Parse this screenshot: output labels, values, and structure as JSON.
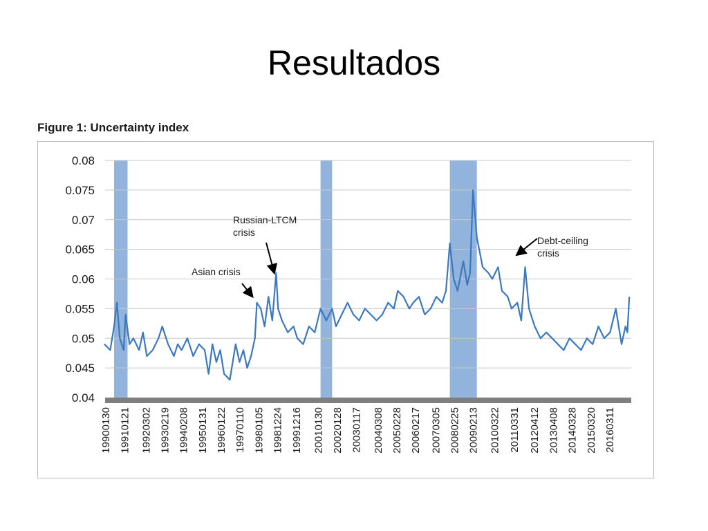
{
  "slide": {
    "title": "Resultados"
  },
  "figure": {
    "title": "Figure 1: Uncertainty index"
  },
  "colors": {
    "line": "#3a78bf",
    "band": "#7ea6d6",
    "grid": "#c8c8c8",
    "axis": "#7f7f7f"
  },
  "chart_data": {
    "type": "line",
    "title": "Figure 1: Uncertainty index",
    "xlabel": "",
    "ylabel": "",
    "ylim": [
      0.04,
      0.08
    ],
    "xlim": [
      1990.0,
      2017.3
    ],
    "yticks": [
      "0.08",
      "0.075",
      "0.07",
      "0.065",
      "0.06",
      "0.055",
      "0.05",
      "0.045",
      "0.04"
    ],
    "ytick_values": [
      0.08,
      0.075,
      0.07,
      0.065,
      0.06,
      0.055,
      0.05,
      0.045,
      0.04
    ],
    "xticks": [
      "19900130",
      "19910121",
      "19920302",
      "19930219",
      "19940208",
      "19950131",
      "19960122",
      "19970110",
      "19980105",
      "19981224",
      "19991216",
      "20010130",
      "20020128",
      "20030117",
      "20040308",
      "20050228",
      "20060217",
      "20070305",
      "20080225",
      "20090213",
      "20100322",
      "20110331",
      "20120412",
      "20130408",
      "20140328",
      "20150320",
      "20160311"
    ],
    "xtick_values": [
      1990.08,
      1991.05,
      1992.17,
      1993.13,
      1994.11,
      1995.08,
      1996.06,
      1997.03,
      1998.01,
      1998.98,
      1999.96,
      2001.08,
      2002.07,
      2003.05,
      2004.18,
      2005.16,
      2006.13,
      2007.17,
      2008.15,
      2009.12,
      2010.22,
      2011.25,
      2012.28,
      2013.27,
      2014.24,
      2015.22,
      2016.19
    ],
    "grid": true,
    "recession_bands": [
      [
        1990.5,
        1991.2
      ],
      [
        2001.2,
        2001.8
      ],
      [
        2007.9,
        2009.3
      ]
    ],
    "series": [
      {
        "x": [
          1990.0,
          1990.3,
          1990.5,
          1990.65,
          1990.8,
          1991.0,
          1991.1,
          1991.3,
          1991.5,
          1991.8,
          1992.0,
          1992.2,
          1992.5,
          1992.8,
          1993.0,
          1993.3,
          1993.6,
          1993.8,
          1994.0,
          1994.3,
          1994.6,
          1994.9,
          1995.2,
          1995.4,
          1995.6,
          1995.8,
          1996.0,
          1996.2,
          1996.5,
          1996.8,
          1997.0,
          1997.2,
          1997.4,
          1997.6,
          1997.8,
          1997.9,
          1998.1,
          1998.3,
          1998.5,
          1998.7,
          1998.9,
          1999.0,
          1999.2,
          1999.5,
          1999.8,
          2000.0,
          2000.3,
          2000.6,
          2000.9,
          2001.2,
          2001.5,
          2001.8,
          2002.0,
          2002.3,
          2002.6,
          2002.9,
          2003.2,
          2003.5,
          2003.8,
          2004.1,
          2004.4,
          2004.7,
          2005.0,
          2005.2,
          2005.5,
          2005.8,
          2006.0,
          2006.3,
          2006.6,
          2006.9,
          2007.2,
          2007.5,
          2007.7,
          2007.9,
          2008.1,
          2008.3,
          2008.6,
          2008.8,
          2008.95,
          2009.1,
          2009.3,
          2009.6,
          2009.9,
          2010.1,
          2010.4,
          2010.6,
          2010.9,
          2011.1,
          2011.4,
          2011.6,
          2011.8,
          2012.0,
          2012.3,
          2012.6,
          2012.9,
          2013.2,
          2013.5,
          2013.8,
          2014.1,
          2014.4,
          2014.7,
          2015.0,
          2015.3,
          2015.6,
          2015.9,
          2016.2,
          2016.5,
          2016.8,
          2017.0,
          2017.1,
          2017.2
        ],
        "values": [
          0.049,
          0.048,
          0.052,
          0.056,
          0.05,
          0.048,
          0.054,
          0.049,
          0.05,
          0.048,
          0.051,
          0.047,
          0.048,
          0.05,
          0.052,
          0.049,
          0.047,
          0.049,
          0.048,
          0.05,
          0.047,
          0.049,
          0.048,
          0.044,
          0.049,
          0.046,
          0.048,
          0.044,
          0.043,
          0.049,
          0.046,
          0.048,
          0.045,
          0.047,
          0.05,
          0.056,
          0.055,
          0.052,
          0.057,
          0.053,
          0.061,
          0.055,
          0.053,
          0.051,
          0.052,
          0.05,
          0.049,
          0.052,
          0.051,
          0.055,
          0.053,
          0.055,
          0.052,
          0.054,
          0.056,
          0.054,
          0.053,
          0.055,
          0.054,
          0.053,
          0.054,
          0.056,
          0.055,
          0.058,
          0.057,
          0.055,
          0.056,
          0.057,
          0.054,
          0.055,
          0.057,
          0.056,
          0.058,
          0.066,
          0.06,
          0.058,
          0.063,
          0.059,
          0.061,
          0.075,
          0.067,
          0.062,
          0.061,
          0.06,
          0.062,
          0.058,
          0.057,
          0.055,
          0.056,
          0.053,
          0.062,
          0.055,
          0.052,
          0.05,
          0.051,
          0.05,
          0.049,
          0.048,
          0.05,
          0.049,
          0.048,
          0.05,
          0.049,
          0.052,
          0.05,
          0.051,
          0.055,
          0.049,
          0.052,
          0.051,
          0.057
        ]
      }
    ],
    "annotations": [
      {
        "text": "Asian crisis",
        "x": 1997.75,
        "y": 0.0568
      },
      {
        "text": "Russian-LTCM crisis",
        "x": 1998.9,
        "y": 0.0608
      },
      {
        "text": "Debt-ceiling crisis",
        "x": 2011.3,
        "y": 0.0638
      }
    ]
  }
}
